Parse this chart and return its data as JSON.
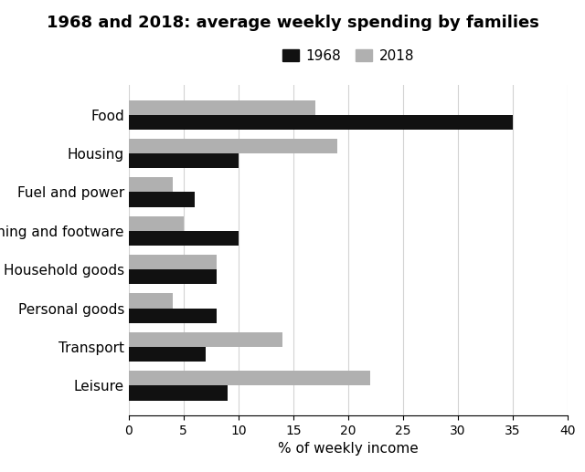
{
  "title": "1968 and 2018: average weekly spending by families",
  "categories": [
    "Food",
    "Housing",
    "Fuel and power",
    "Clothing and footware",
    "Household goods",
    "Personal goods",
    "Transport",
    "Leisure"
  ],
  "values_1968": [
    35,
    10,
    6,
    10,
    8,
    8,
    7,
    9
  ],
  "values_2018": [
    17,
    19,
    4,
    5,
    8,
    4,
    14,
    22
  ],
  "color_1968": "#111111",
  "color_2018": "#b0b0b0",
  "xlabel": "% of weekly income",
  "xlim": [
    0,
    40
  ],
  "xticks": [
    0,
    5,
    10,
    15,
    20,
    25,
    30,
    35,
    40
  ],
  "legend_labels": [
    "1968",
    "2018"
  ],
  "bar_height": 0.38,
  "title_fontsize": 13,
  "label_fontsize": 11,
  "tick_fontsize": 10
}
